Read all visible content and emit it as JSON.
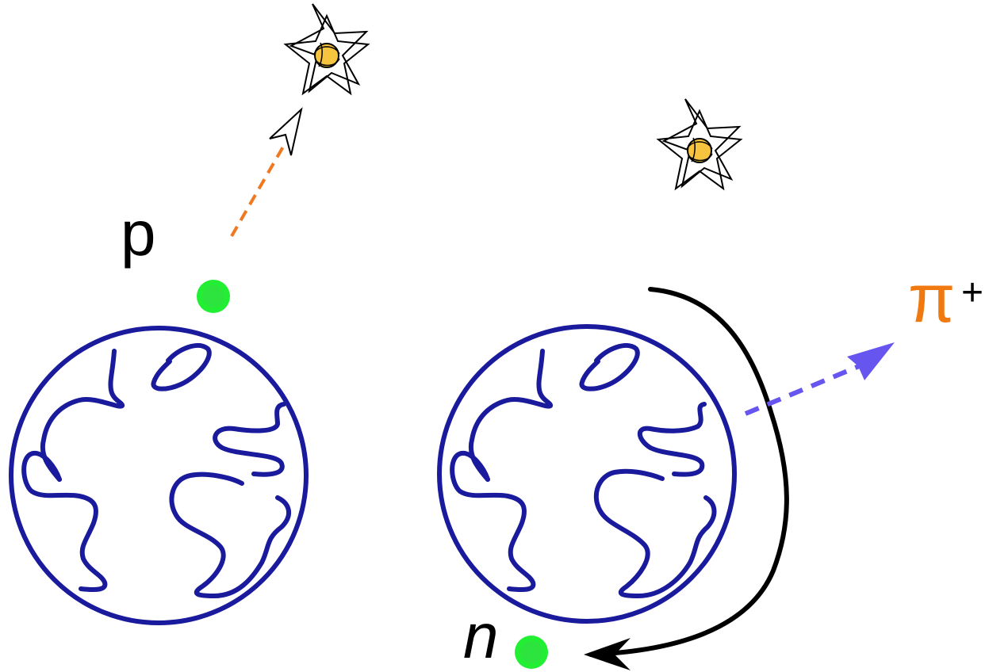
{
  "labels": {
    "proton": "p",
    "neutron": "n",
    "pion": "π",
    "pion_charge": "+"
  },
  "colors": {
    "nucleus": "#1a1a9c",
    "nucleon": "#22ee33",
    "nucleon_inner": "#33dd44",
    "proton_path": "#f07820",
    "pion_path": "#6655ee",
    "pion_label": "#f07a10",
    "curve": "#000000",
    "star_fill": "#f7c440"
  },
  "icons": {
    "star_burst": "star-burst-icon",
    "nucleus": "globe-icon"
  }
}
